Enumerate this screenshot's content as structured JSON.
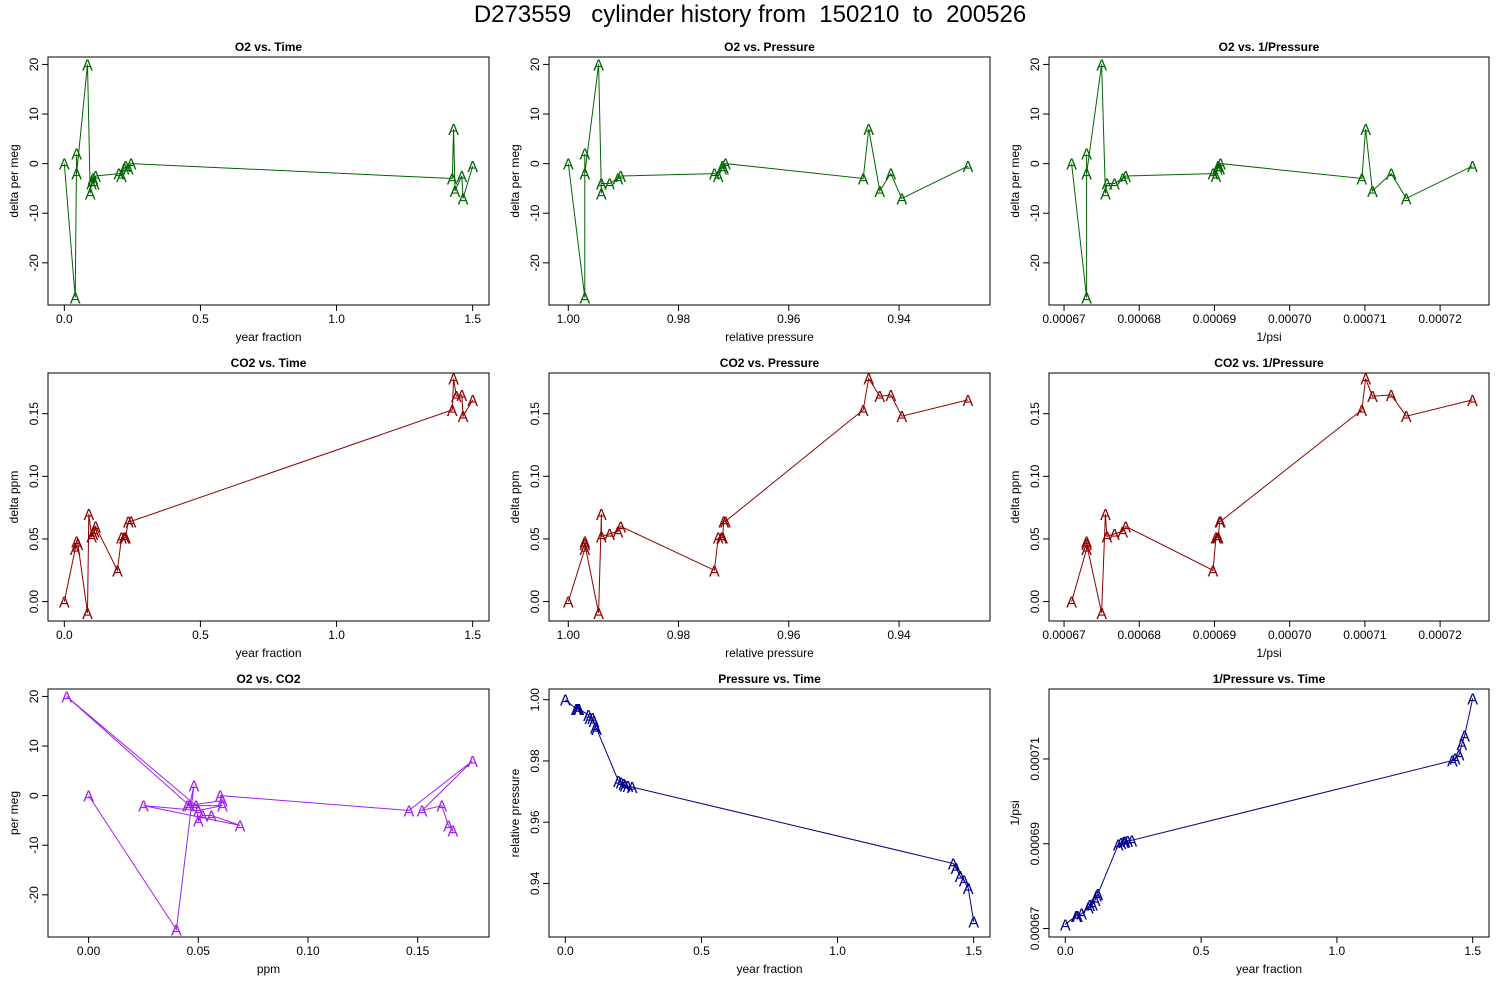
{
  "page": {
    "title": "D273559   cylinder history from  150210  to  200526"
  },
  "chart_data": [
    {
      "type": "line",
      "title": "O2 vs. Time",
      "xlabel": "year fraction",
      "ylabel": "delta per meg",
      "color": "#006400",
      "marker": "A",
      "xlim": [
        -0.06,
        1.56
      ],
      "ylim": [
        -28.5,
        21.5
      ],
      "reverse_x": false,
      "xticks": [
        0,
        0.5,
        1.0,
        1.5
      ],
      "xtick_labels": [
        "0.0",
        "0.5",
        "1.0",
        "1.5"
      ],
      "yticks": [
        -20,
        -10,
        0,
        10,
        20
      ],
      "ytick_labels": [
        "-20",
        "-10",
        "0",
        "10",
        "20"
      ],
      "x": [
        0.0,
        0.04,
        0.045,
        0.045,
        0.085,
        0.095,
        0.1,
        0.105,
        0.11,
        0.115,
        0.2,
        0.21,
        0.22,
        0.225,
        0.235,
        0.245,
        1.425,
        1.43,
        1.435,
        1.46,
        1.465,
        1.5
      ],
      "y": [
        0,
        -27,
        2,
        -2,
        20,
        -6,
        -4,
        -3,
        -4,
        -2.5,
        -2,
        -2.5,
        -1,
        -0.5,
        -1,
        0,
        -3,
        7,
        -5.5,
        -2.5,
        -7,
        -0.5
      ]
    },
    {
      "type": "line",
      "title": "O2 vs. Pressure",
      "xlabel": "relative pressure",
      "ylabel": "delta per meg",
      "color": "#006400",
      "marker": "A",
      "xlim": [
        1.0035,
        0.9235
      ],
      "ylim": [
        -28.5,
        21.5
      ],
      "reverse_x": true,
      "xticks": [
        1.0,
        0.98,
        0.96,
        0.94
      ],
      "xtick_labels": [
        "1.00",
        "0.98",
        "0.96",
        "0.94"
      ],
      "yticks": [
        -20,
        -10,
        0,
        10,
        20
      ],
      "ytick_labels": [
        "-20",
        "-10",
        "0",
        "10",
        "20"
      ],
      "x": [
        1.0,
        0.997,
        0.997,
        0.997,
        0.9945,
        0.994,
        0.994,
        0.9925,
        0.991,
        0.9905,
        0.9735,
        0.9728,
        0.9722,
        0.972,
        0.9718,
        0.9715,
        0.9465,
        0.9455,
        0.9435,
        0.9415,
        0.9395,
        0.9275
      ],
      "y": [
        0,
        -27,
        2,
        -2,
        20,
        -6,
        -4,
        -4,
        -3,
        -2.5,
        -2,
        -2.5,
        -1,
        -0.5,
        -1,
        0,
        -3,
        7,
        -5.5,
        -2,
        -7,
        -0.5
      ]
    },
    {
      "type": "line",
      "title": "O2 vs. 1/Pressure",
      "xlabel": "1/psi",
      "ylabel": "delta per meg",
      "color": "#006400",
      "marker": "A",
      "xlim": [
        0.000668,
        0.0007265
      ],
      "ylim": [
        -28.5,
        21.5
      ],
      "reverse_x": false,
      "xticks": [
        0.00067,
        0.00068,
        0.00069,
        0.0007,
        0.00071,
        0.00072
      ],
      "xtick_labels": [
        "0.00067",
        "0.00068",
        "0.00069",
        "0.00070",
        "0.00071",
        "0.00072"
      ],
      "yticks": [
        -20,
        -10,
        0,
        10,
        20
      ],
      "ytick_labels": [
        "-20",
        "-10",
        "0",
        "10",
        "20"
      ],
      "x": [
        0.000671,
        0.000673,
        0.000673,
        0.000673,
        0.000675,
        0.0006755,
        0.0006757,
        0.0006767,
        0.0006778,
        0.0006782,
        0.0006898,
        0.0006902,
        0.0006904,
        0.0006905,
        0.0006907,
        0.0006908,
        0.0007096,
        0.0007101,
        0.000711,
        0.0007135,
        0.0007155,
        0.0007243
      ],
      "y": [
        0,
        -27,
        2,
        -2,
        20,
        -6,
        -4,
        -4,
        -3,
        -2.5,
        -2,
        -2.5,
        -1,
        -0.5,
        -1,
        0,
        -3,
        7,
        -5.5,
        -2,
        -7,
        -0.5
      ]
    },
    {
      "type": "line",
      "title": "CO2 vs. Time",
      "xlabel": "year fraction",
      "ylabel": "delta ppm",
      "color": "#8B0000",
      "marker": "A",
      "xlim": [
        -0.06,
        1.56
      ],
      "ylim": [
        -0.0155,
        0.1825
      ],
      "reverse_x": false,
      "xticks": [
        0,
        0.5,
        1.0,
        1.5
      ],
      "xtick_labels": [
        "0.0",
        "0.5",
        "1.0",
        "1.5"
      ],
      "yticks": [
        0,
        0.05,
        0.1,
        0.15
      ],
      "ytick_labels": [
        "0.00",
        "0.05",
        "0.10",
        "0.15"
      ],
      "x": [
        0.0,
        0.04,
        0.045,
        0.05,
        0.085,
        0.09,
        0.1,
        0.105,
        0.11,
        0.115,
        0.195,
        0.21,
        0.22,
        0.225,
        0.235,
        0.245,
        1.425,
        1.43,
        1.44,
        1.46,
        1.465,
        1.5
      ],
      "y": [
        0,
        0.042,
        0.048,
        0.046,
        -0.009,
        0.07,
        0.052,
        0.054,
        0.056,
        0.06,
        0.025,
        0.051,
        0.051,
        0.051,
        0.064,
        0.064,
        0.153,
        0.178,
        0.164,
        0.165,
        0.148,
        0.161
      ]
    },
    {
      "type": "line",
      "title": "CO2 vs. Pressure",
      "xlabel": "relative pressure",
      "ylabel": "delta ppm",
      "color": "#8B0000",
      "marker": "A",
      "xlim": [
        1.0035,
        0.9235
      ],
      "ylim": [
        -0.0155,
        0.1825
      ],
      "reverse_x": true,
      "xticks": [
        1.0,
        0.98,
        0.96,
        0.94
      ],
      "xtick_labels": [
        "1.00",
        "0.98",
        "0.96",
        "0.94"
      ],
      "yticks": [
        0,
        0.05,
        0.1,
        0.15
      ],
      "ytick_labels": [
        "0.00",
        "0.05",
        "0.10",
        "0.15"
      ],
      "x": [
        1.0,
        0.997,
        0.997,
        0.997,
        0.9945,
        0.994,
        0.994,
        0.9925,
        0.991,
        0.9905,
        0.9735,
        0.9728,
        0.9722,
        0.972,
        0.9718,
        0.9715,
        0.9465,
        0.9455,
        0.9435,
        0.9415,
        0.9395,
        0.9275
      ],
      "y": [
        0,
        0.042,
        0.048,
        0.046,
        -0.009,
        0.07,
        0.052,
        0.054,
        0.056,
        0.06,
        0.025,
        0.051,
        0.051,
        0.051,
        0.064,
        0.064,
        0.153,
        0.178,
        0.164,
        0.165,
        0.148,
        0.161
      ]
    },
    {
      "type": "line",
      "title": "CO2 vs. 1/Pressure",
      "xlabel": "1/psi",
      "ylabel": "delta ppm",
      "color": "#8B0000",
      "marker": "A",
      "xlim": [
        0.000668,
        0.0007265
      ],
      "ylim": [
        -0.0155,
        0.1825
      ],
      "reverse_x": false,
      "xticks": [
        0.00067,
        0.00068,
        0.00069,
        0.0007,
        0.00071,
        0.00072
      ],
      "xtick_labels": [
        "0.00067",
        "0.00068",
        "0.00069",
        "0.00070",
        "0.00071",
        "0.00072"
      ],
      "yticks": [
        0,
        0.05,
        0.1,
        0.15
      ],
      "ytick_labels": [
        "0.00",
        "0.05",
        "0.10",
        "0.15"
      ],
      "x": [
        0.000671,
        0.000673,
        0.000673,
        0.000673,
        0.000675,
        0.0006755,
        0.0006757,
        0.0006767,
        0.0006778,
        0.0006782,
        0.0006898,
        0.0006902,
        0.0006904,
        0.0006905,
        0.0006907,
        0.0006908,
        0.0007096,
        0.0007101,
        0.000711,
        0.0007135,
        0.0007155,
        0.0007243
      ],
      "y": [
        0,
        0.042,
        0.048,
        0.046,
        -0.009,
        0.07,
        0.052,
        0.054,
        0.056,
        0.06,
        0.025,
        0.051,
        0.051,
        0.051,
        0.064,
        0.064,
        0.153,
        0.178,
        0.164,
        0.165,
        0.148,
        0.161
      ]
    },
    {
      "type": "line",
      "title": "O2 vs. CO2",
      "xlabel": "ppm",
      "ylabel": "per meg",
      "color": "#A020F0",
      "marker": "A",
      "xlim": [
        -0.0185,
        0.1825
      ],
      "ylim": [
        -28.5,
        21.5
      ],
      "reverse_x": false,
      "xticks": [
        0,
        0.05,
        0.1,
        0.15
      ],
      "xtick_labels": [
        "0.00",
        "0.05",
        "0.10",
        "0.15"
      ],
      "yticks": [
        -20,
        -10,
        0,
        10,
        20
      ],
      "ytick_labels": [
        "-20",
        "-10",
        "0",
        "10",
        "20"
      ],
      "x": [
        0.0,
        0.04,
        0.048,
        0.046,
        -0.01,
        0.049,
        0.05,
        0.052,
        0.056,
        0.069,
        0.025,
        0.05,
        0.061,
        0.045,
        0.061,
        0.06,
        0.146,
        0.175,
        0.152,
        0.161,
        0.164,
        0.166
      ],
      "y": [
        0,
        -27,
        2,
        -2,
        20,
        -2,
        -5,
        -4,
        -4,
        -6,
        -2,
        -3,
        -2,
        -2,
        -1,
        0,
        -3,
        7,
        -3,
        -2,
        -6,
        -7
      ]
    },
    {
      "type": "line",
      "title": "Pressure vs. Time",
      "xlabel": "year fraction",
      "ylabel": "relative pressure",
      "color": "#00008B",
      "marker": "A",
      "xlim": [
        -0.06,
        1.56
      ],
      "ylim": [
        0.9225,
        1.0035
      ],
      "reverse_x": false,
      "xticks": [
        0,
        0.5,
        1.0,
        1.5
      ],
      "xtick_labels": [
        "0.0",
        "0.5",
        "1.0",
        "1.5"
      ],
      "yticks": [
        0.94,
        0.96,
        0.98,
        1.0
      ],
      "ytick_labels": [
        "0.94",
        "0.96",
        "0.98",
        "1.00"
      ],
      "x": [
        0.0,
        0.04,
        0.045,
        0.05,
        0.085,
        0.09,
        0.1,
        0.105,
        0.11,
        0.115,
        0.195,
        0.205,
        0.215,
        0.22,
        0.23,
        0.245,
        1.425,
        1.435,
        1.45,
        1.465,
        1.48,
        1.5
      ],
      "y": [
        1.0,
        0.997,
        0.997,
        0.997,
        0.995,
        0.994,
        0.994,
        0.993,
        0.991,
        0.9905,
        0.9735,
        0.973,
        0.9725,
        0.972,
        0.9718,
        0.9715,
        0.9465,
        0.945,
        0.9425,
        0.941,
        0.9385,
        0.9275
      ]
    },
    {
      "type": "line",
      "title": "1/Pressure vs. Time",
      "xlabel": "year fraction",
      "ylabel": "1/psi",
      "color": "#00008B",
      "marker": "A",
      "xlim": [
        -0.06,
        1.56
      ],
      "ylim": [
        0.000668,
        0.0007265
      ],
      "reverse_x": false,
      "xticks": [
        0,
        0.5,
        1.0,
        1.5
      ],
      "xtick_labels": [
        "0.0",
        "0.5",
        "1.0",
        "1.5"
      ],
      "yticks": [
        0.00067,
        0.00069,
        0.00071
      ],
      "ytick_labels": [
        "0.00067",
        "0.00069",
        "0.00071"
      ],
      "x": [
        0.0,
        0.04,
        0.045,
        0.06,
        0.085,
        0.09,
        0.1,
        0.11,
        0.115,
        0.12,
        0.195,
        0.205,
        0.215,
        0.22,
        0.23,
        0.245,
        1.425,
        1.435,
        1.45,
        1.46,
        1.47,
        1.5
      ],
      "y": [
        0.000671,
        0.000673,
        0.000673,
        0.0006735,
        0.000675,
        0.0006755,
        0.0006757,
        0.0006767,
        0.0006778,
        0.0006782,
        0.0006898,
        0.0006902,
        0.0006904,
        0.0006905,
        0.0006907,
        0.0006908,
        0.0007096,
        0.0007101,
        0.000711,
        0.0007135,
        0.0007155,
        0.0007243
      ]
    }
  ]
}
